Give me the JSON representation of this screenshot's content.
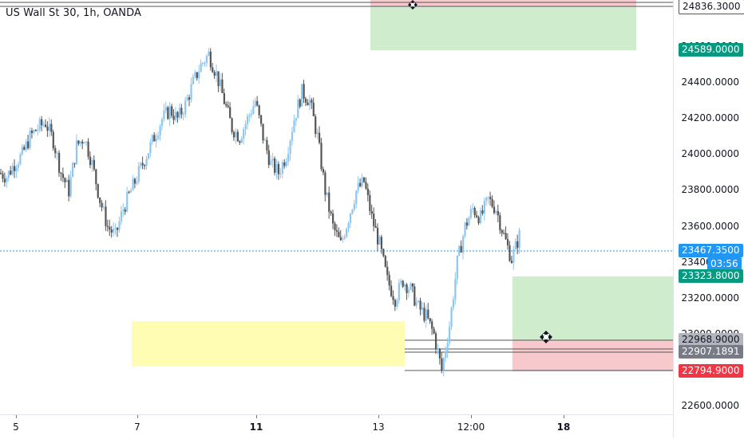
{
  "chart_title": "US Wall St 30, 1h, OANDA",
  "colors": {
    "up": "#8cc6f2",
    "down": "#555555",
    "last_price": "#2196f3",
    "target": "#089981",
    "stop": "#f23645",
    "zone": "#fffcb4"
  },
  "icons": {
    "drag_handle": "crosshair-move-icon"
  },
  "price_axis": {
    "ticks": [
      "24800.0000",
      "24600.0000",
      "24400.0000",
      "24200.0000",
      "24000.0000",
      "23800.0000",
      "23600.0000",
      "23400.0000",
      "23200.0000",
      "23000.0000",
      "22800.0000",
      "22600.0000"
    ]
  },
  "time_axis": {
    "labels": [
      "5",
      "7",
      "11",
      "13",
      "12:00",
      "18"
    ]
  },
  "price_badges": {
    "top_stop": "24836.3000",
    "top_target": "24589.0000",
    "last_price": "23467.3500",
    "countdown": "03:56",
    "bottom_target": "23323.8000",
    "bottom_entry": "22968.9000",
    "bottom_line": "22907.1891",
    "bottom_stop": "22794.9000"
  },
  "chart_data": {
    "type": "candlestick",
    "title": "US Wall St 30, 1h, OANDA",
    "y_range": [
      22500,
      24850
    ],
    "x_labels": [
      "5",
      "7",
      "11",
      "13",
      "12:00",
      "18"
    ],
    "last_price": 23467.35,
    "price_path": [
      23900,
      23880,
      23950,
      24000,
      24100,
      24150,
      24180,
      24080,
      23900,
      23800,
      24050,
      24100,
      23950,
      23750,
      23600,
      23550,
      23700,
      23800,
      23900,
      24000,
      24100,
      24200,
      24250,
      24200,
      24280,
      24400,
      24500,
      24560,
      24450,
      24300,
      24150,
      24100,
      24200,
      24300,
      24100,
      23950,
      23900,
      24000,
      24200,
      24350,
      24300,
      24100,
      23800,
      23600,
      23500,
      23650,
      23800,
      23850,
      23650,
      23500,
      23300,
      23200,
      23300,
      23250,
      23150,
      23100,
      23000,
      22800,
      23050,
      23400,
      23600,
      23700,
      23650,
      23750,
      23700,
      23550,
      23420,
      23550
    ],
    "positions": [
      {
        "kind": "short",
        "stop": 24836.3,
        "entry": 24800.0,
        "target": 24589.0
      },
      {
        "kind": "long",
        "entry": 22968.9,
        "stop": 22794.9,
        "target": 23323.8
      }
    ],
    "horizontal_lines": [
      22907.1891
    ]
  }
}
